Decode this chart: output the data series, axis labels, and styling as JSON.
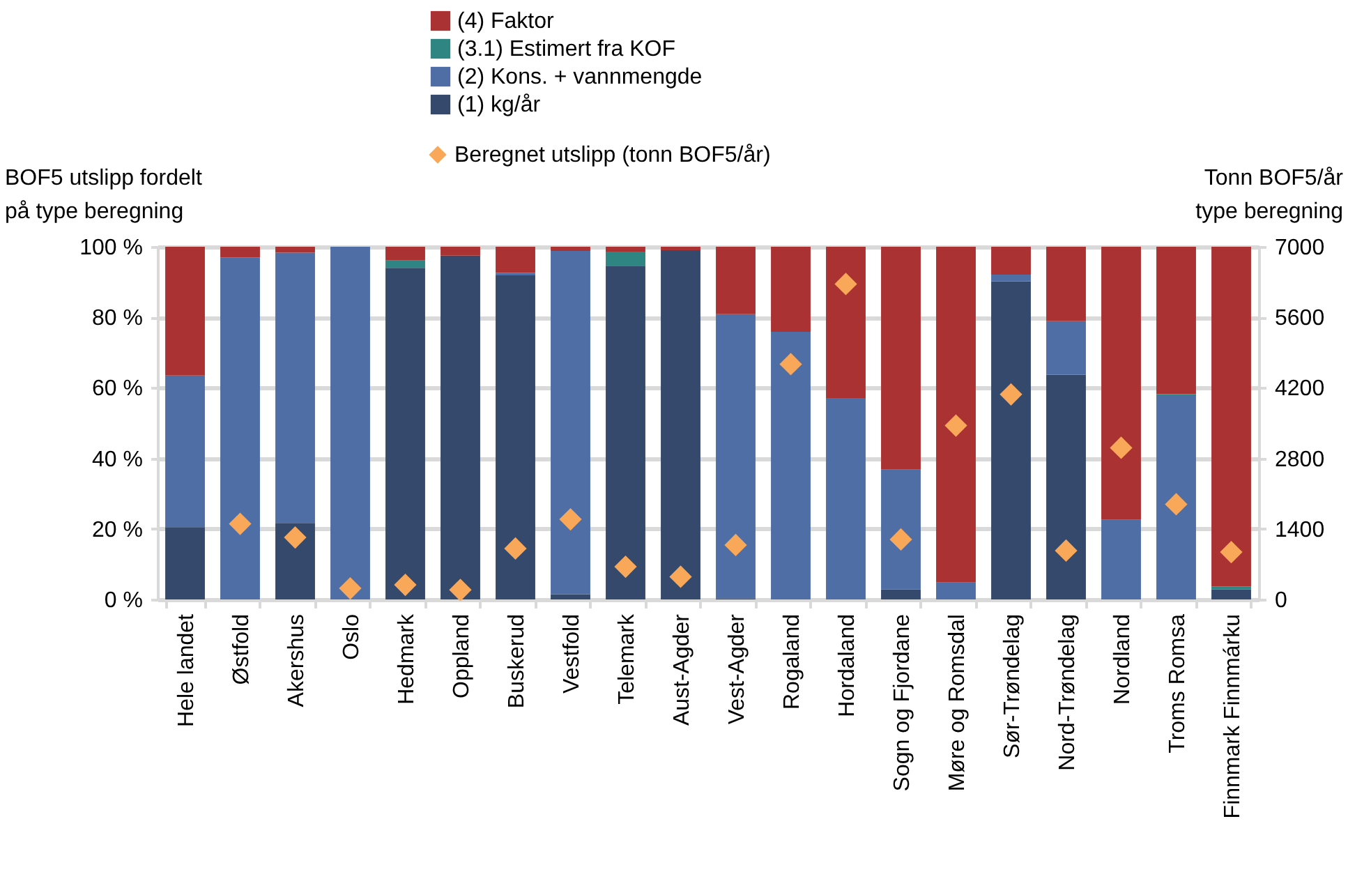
{
  "chart_data": {
    "type": "bar",
    "stacked": true,
    "ylabel": "BOF5 utslipp fordelt\npå type beregning",
    "y2label": "Tonn BOF5/år\ntype beregning",
    "categories": [
      "Hele landet",
      "Østfold",
      "Akershus",
      "Oslo",
      "Hedmark",
      "Oppland",
      "Buskerud",
      "Vestfold",
      "Telemark",
      "Aust-Agder",
      "Vest-Agder",
      "Rogaland",
      "Hordaland",
      "Sogn og Fjordane",
      "Møre og Romsdal",
      "Sør-Trøndelag",
      "Nord-Trøndelag",
      "Nordland",
      "Troms Romsa",
      "Finnmark Finnmárku"
    ],
    "series": [
      {
        "name": "(1) kg/år",
        "color": "#35496d",
        "values": [
          20.5,
          0,
          21.7,
          0,
          94,
          97.5,
          91.9,
          1.5,
          94.6,
          99,
          0.3,
          0,
          0,
          2.8,
          0,
          90.2,
          63.7,
          0,
          0,
          2.8
        ]
      },
      {
        "name": "(2) Kons. + vannmengde",
        "color": "#4f6ea5",
        "values": [
          43,
          97,
          76.6,
          100,
          0,
          0,
          0.7,
          97.3,
          0,
          0,
          80.6,
          75.9,
          57.1,
          34,
          4.8,
          1.9,
          15.2,
          22.6,
          57.7,
          0
        ]
      },
      {
        "name": "(3.1) Estimert fra KOF",
        "color": "#2e8582",
        "values": [
          0,
          0,
          0,
          0,
          2.1,
          0,
          0,
          0,
          4,
          0,
          0,
          0,
          0,
          0,
          0,
          0,
          0,
          0,
          0.5,
          0.9
        ]
      },
      {
        "name": "(4) Faktor",
        "color": "#ab3232",
        "values": [
          36.5,
          3,
          1.7,
          0,
          3.9,
          2.5,
          7.4,
          1.2,
          1.4,
          1,
          19.1,
          24.1,
          42.9,
          63.2,
          95.2,
          7.9,
          21.1,
          77.4,
          41.8,
          96.3
        ]
      },
      {
        "name": "Beregnet utslipp (tonn BOF5/år)",
        "type": "scatter",
        "axis": "y2",
        "marker": "diamond",
        "color": "#f9a85a",
        "x": [
          "Hele landet",
          "Østfold",
          "Akershus",
          "Oslo",
          "Hedmark",
          "Oppland",
          "Buskerud",
          "Vestfold",
          "Telemark",
          "Aust-Agder",
          "Vest-Agder",
          "Rogaland",
          "Hordaland",
          "Sogn og Fjordane",
          "Møre og Romsdal",
          "Sør-Trøndelag",
          "Nord-Trøndelag",
          "Nordland",
          "Troms Romsa",
          "Finnmark Finnmárku"
        ],
        "values": [
          null,
          1500,
          1230,
          220,
          290,
          190,
          1010,
          1590,
          650,
          450,
          1080,
          4670,
          6260,
          1190,
          3450,
          4070,
          970,
          3010,
          1890,
          940
        ]
      }
    ],
    "ylim": [
      0,
      100
    ],
    "yticks": [
      {
        "value": 0,
        "label": "0 %"
      },
      {
        "value": 20,
        "label": "20 %"
      },
      {
        "value": 40,
        "label": "40 %"
      },
      {
        "value": 60,
        "label": "60 %"
      },
      {
        "value": 80,
        "label": "80 %"
      },
      {
        "value": 100,
        "label": "100 %"
      }
    ],
    "y2lim": [
      0,
      7000
    ],
    "y2ticks": [
      0,
      1400,
      2800,
      4200,
      5600,
      7000
    ],
    "grid": "y",
    "legend": "top"
  }
}
